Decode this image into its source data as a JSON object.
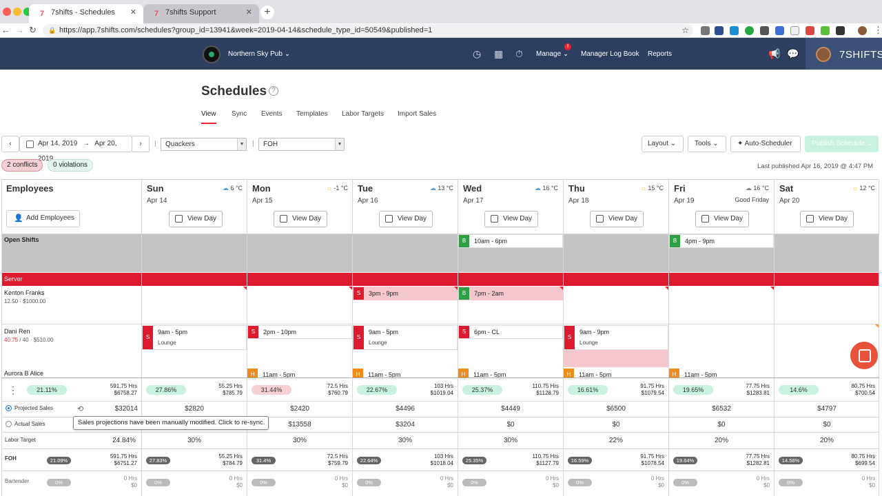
{
  "browser": {
    "tabs": [
      {
        "title": "7shifts - Schedules",
        "favicon": "7shifts-icon"
      },
      {
        "title": "7shifts Support",
        "favicon": "7shifts-icon"
      }
    ],
    "url": "https://app.7shifts.com/schedules?group_id=13941&week=2019-04-14&schedule_type_id=50549&published=1"
  },
  "header": {
    "location": "Northern Sky Pub",
    "manage": "Manage",
    "manage_badge": "!",
    "log_book": "Manager Log Book",
    "reports": "Reports",
    "brand": "7SHIFTS"
  },
  "page": {
    "title": "Schedules",
    "help": "?",
    "subnav": [
      "View",
      "Sync",
      "Events",
      "Templates",
      "Labor Targets",
      "Import Sales"
    ]
  },
  "toolbar": {
    "date_from": "Apr 14, 2019",
    "date_arrow": "→",
    "date_to": "Apr 20, 2019",
    "location_select": "Quackers",
    "department_select": "FOH",
    "layout": "Layout",
    "tools": "Tools",
    "auto_scheduler": "Auto-Scheduler",
    "publish": "Publish Schedule"
  },
  "alerts": {
    "conflicts": "2 conflicts",
    "violations": "0 violations",
    "last_published": "Last published Apr 16, 2019 @ 4:47 PM"
  },
  "grid": {
    "employees_header": "Employees",
    "add_employees": "Add Employees",
    "view_day": "View Day",
    "days": [
      {
        "name": "Sun",
        "date": "Apr 14",
        "temp": "6 °C",
        "weather": "rain",
        "note": ""
      },
      {
        "name": "Mon",
        "date": "Apr 15",
        "temp": "-1 °C",
        "weather": "sun",
        "note": ""
      },
      {
        "name": "Tue",
        "date": "Apr 16",
        "temp": "13 °C",
        "weather": "rain",
        "note": ""
      },
      {
        "name": "Wed",
        "date": "Apr 17",
        "temp": "16 °C",
        "weather": "rain",
        "note": ""
      },
      {
        "name": "Thu",
        "date": "Apr 18",
        "temp": "15 °C",
        "weather": "sun",
        "note": ""
      },
      {
        "name": "Fri",
        "date": "Apr 19",
        "temp": "16 °C",
        "weather": "cloud",
        "note": "Good Friday"
      },
      {
        "name": "Sat",
        "date": "Apr 20",
        "temp": "12 °C",
        "weather": "sun",
        "note": ""
      }
    ],
    "open_shifts_label": "Open Shifts",
    "open_shifts": [
      {
        "day": "Wed",
        "role": "B",
        "time": "10am - 6pm"
      },
      {
        "day": "Fri",
        "role": "B",
        "time": "4pm - 9pm"
      }
    ],
    "section_label": "Server",
    "employees": [
      {
        "name": "Kenton Franks",
        "sub": "12.50 · $1000.00",
        "sub_red": ""
      },
      {
        "name": "Dani Ren",
        "sub": " / 40 · $510.00",
        "sub_red": "40.75"
      },
      {
        "name": "Aurora B Alice",
        "sub": "",
        "sub_red": ""
      }
    ],
    "shifts": {
      "kenton": [
        {
          "day": "Tue",
          "role": "S",
          "time": "3pm - 9pm",
          "loc": ""
        },
        {
          "day": "Wed",
          "role": "B",
          "time": "7pm - 2am",
          "loc": ""
        }
      ],
      "dani": [
        {
          "day": "Sun",
          "role": "S",
          "time": "9am - 5pm",
          "loc": "Lounge"
        },
        {
          "day": "Mon",
          "role": "S",
          "time": "2pm - 10pm",
          "loc": ""
        },
        {
          "day": "Tue",
          "role": "S",
          "time": "9am - 5pm",
          "loc": "Lounge"
        },
        {
          "day": "Wed",
          "role": "S",
          "time": "6pm - CL",
          "loc": ""
        },
        {
          "day": "Thu",
          "role": "S",
          "time": "9am - 9pm",
          "loc": "Lounge"
        }
      ],
      "aurora": [
        {
          "day": "Mon",
          "role": "H",
          "time": "11am - 5pm"
        },
        {
          "day": "Tue",
          "role": "H",
          "time": "11am - 5pm"
        },
        {
          "day": "Wed",
          "role": "H",
          "time": "11am - 5pm"
        },
        {
          "day": "Thu",
          "role": "H",
          "time": "11am - 5pm"
        },
        {
          "day": "Fri",
          "role": "H",
          "time": "11am - 5pm"
        }
      ]
    }
  },
  "stats": {
    "labor": [
      {
        "pct": "21.11%",
        "hrs": "591.75 Hrs",
        "cost": "$6758.27",
        "tone": "green"
      },
      {
        "pct": "27.86%",
        "hrs": "55.25 Hrs",
        "cost": "$785.79",
        "tone": "green"
      },
      {
        "pct": "31.44%",
        "hrs": "72.5 Hrs",
        "cost": "$760.79",
        "tone": "red"
      },
      {
        "pct": "22.67%",
        "hrs": "103 Hrs",
        "cost": "$1019.04",
        "tone": "green"
      },
      {
        "pct": "25.37%",
        "hrs": "110.75 Hrs",
        "cost": "$1128.79",
        "tone": "green"
      },
      {
        "pct": "16.61%",
        "hrs": "91.75 Hrs",
        "cost": "$1079.54",
        "tone": "green"
      },
      {
        "pct": "19.65%",
        "hrs": "77.75 Hrs",
        "cost": "$1283.81",
        "tone": "green"
      },
      {
        "pct": "14.6%",
        "hrs": "80.75 Hrs",
        "cost": "$700.54",
        "tone": "green"
      }
    ],
    "projected_label": "Projected Sales",
    "projected": [
      "$32014",
      "$2820",
      "$2420",
      "$4496",
      "$4449",
      "$6500",
      "$6532",
      "$4797"
    ],
    "actual_label": "Actual Sales",
    "actual": [
      "",
      "",
      "$13558",
      "$3204",
      "$0",
      "$0",
      "$0",
      "$0"
    ],
    "tooltip": "Sales projections have been manually modified. Click to re-sync.",
    "labor_target_label": "Labor Target",
    "labor_target": [
      "24.84%",
      "30%",
      "30%",
      "30%",
      "30%",
      "22%",
      "20%",
      "20%"
    ],
    "foh_label": "FOH",
    "foh": [
      {
        "pct": "21.09%",
        "hrs": "591.75 Hrs",
        "cost": "$6751.27"
      },
      {
        "pct": "27.83%",
        "hrs": "55.25 Hrs",
        "cost": "$784.79"
      },
      {
        "pct": "31.4%",
        "hrs": "72.5 Hrs",
        "cost": "$759.79"
      },
      {
        "pct": "22.64%",
        "hrs": "103 Hrs",
        "cost": "$1018.04"
      },
      {
        "pct": "25.35%",
        "hrs": "110.75 Hrs",
        "cost": "$1127.79"
      },
      {
        "pct": "16.59%",
        "hrs": "91.75 Hrs",
        "cost": "$1078.54"
      },
      {
        "pct": "19.64%",
        "hrs": "77.75 Hrs",
        "cost": "$1282.81"
      },
      {
        "pct": "14.58%",
        "hrs": "80.75 Hrs",
        "cost": "$699.54"
      }
    ],
    "bartender_label": "Bartender",
    "bartender": [
      {
        "pct": "0%",
        "hrs": "0 Hrs",
        "cost": "$0"
      },
      {
        "pct": "0%",
        "hrs": "0 Hrs",
        "cost": "$0"
      },
      {
        "pct": "0%",
        "hrs": "0 Hrs",
        "cost": "$0"
      },
      {
        "pct": "0%",
        "hrs": "0 Hrs",
        "cost": "$0"
      },
      {
        "pct": "0%",
        "hrs": "0 Hrs",
        "cost": "$0"
      },
      {
        "pct": "0%",
        "hrs": "0 Hrs",
        "cost": "$0"
      },
      {
        "pct": "0%",
        "hrs": "0 Hrs",
        "cost": "$0"
      },
      {
        "pct": "0%",
        "hrs": "0 Hrs",
        "cost": "$0"
      }
    ]
  },
  "colors": {
    "header_bg": "#2d3e5f",
    "server_red": "#de1b2e",
    "role_s": "#de1b2e",
    "role_b": "#2f9e44",
    "role_h": "#f08c1c",
    "green_pill": "#c9f1e0",
    "red_pill": "#f8cfd5"
  }
}
